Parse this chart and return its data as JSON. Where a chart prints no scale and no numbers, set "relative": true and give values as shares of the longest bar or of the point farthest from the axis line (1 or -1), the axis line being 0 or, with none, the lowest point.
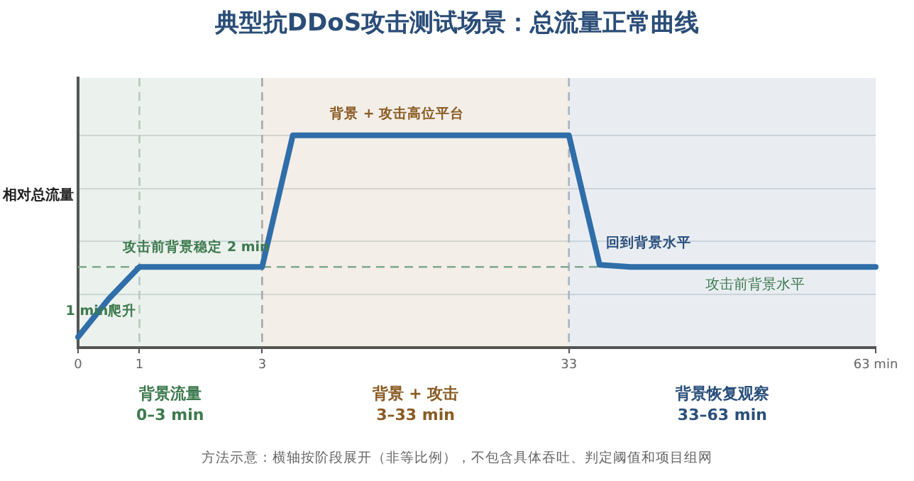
{
  "chart_data": {
    "type": "line",
    "title": "典型抗DDoS攻击测试场景：总流量正常曲线",
    "ylabel": "相对总流量",
    "relative": true,
    "categories": [
      "0",
      null,
      "1",
      null,
      null,
      null,
      "3",
      null,
      null,
      null,
      null,
      null,
      null,
      null,
      null,
      null,
      "33",
      null,
      null,
      null,
      null,
      null,
      null,
      null,
      null,
      null,
      "63 min"
    ],
    "series": [
      {
        "color": "#2f6ea8",
        "values": [
          0.05,
          0.23,
          0.38,
          0.38,
          0.38,
          0.38,
          0.38,
          1,
          1,
          1,
          1,
          1,
          1,
          1,
          1,
          1,
          1,
          0.39,
          0.38,
          0.38,
          0.38,
          0.38,
          0.38,
          0.38,
          0.38,
          0.38,
          0.38
        ]
      }
    ],
    "grid": "y",
    "legend": false,
    "marker": "none",
    "line_style": "solid",
    "bands": [
      {
        "axis": "x",
        "from": "0",
        "to": "3",
        "label": "背景流量\n0–3 min",
        "color": "#3d7a4e"
      },
      {
        "axis": "x",
        "from": "3",
        "to": "33",
        "label": "背景 + 攻击\n3–33 min",
        "color": "#8a5a22"
      },
      {
        "axis": "x",
        "from": "33",
        "to": "63 min",
        "label": "背景恢复观察\n33–63 min",
        "color": "#2a4f7c"
      }
    ],
    "ref_lines": [
      {
        "axis": "x",
        "value": "1",
        "color": "#b8c8bc",
        "line_style": "dashed"
      },
      {
        "axis": "x",
        "value": "3",
        "color": "#a8a8a8",
        "line_style": "dashed"
      },
      {
        "axis": "x",
        "value": "33",
        "color": "#a8b4c4",
        "line_style": "dashed"
      },
      {
        "axis": "y",
        "value": 0.38,
        "label": "攻击前背景水平",
        "color": "#7fa88c",
        "line_style": "dashed"
      }
    ],
    "annotations": [
      {
        "text": "1 min爬升",
        "y": 0.17
      },
      "攻击前背景稳定 2 min",
      "背景 + 攻击高位平台",
      "回到背景水平",
      "方法示意：横轴按阶段展开（非等比例），不包含具体吞吐、判定阈值和项目组网"
    ]
  }
}
